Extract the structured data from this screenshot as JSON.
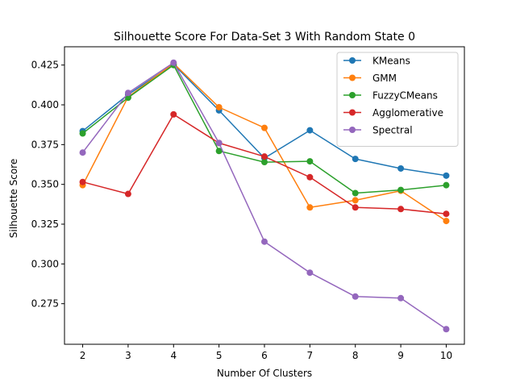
{
  "chart_data": {
    "type": "line",
    "title": "Silhouette Score For Data-Set 3 With Random State 0",
    "xlabel": "Number Of Clusters",
    "ylabel": "Silhouette Score",
    "x": [
      2,
      3,
      4,
      5,
      6,
      7,
      8,
      9,
      10
    ],
    "xlim": [
      1.6,
      10.4
    ],
    "ylim": [
      0.2495,
      0.4365
    ],
    "yticks": [
      0.275,
      0.3,
      0.325,
      0.35,
      0.375,
      0.4,
      0.425
    ],
    "ytick_labels": [
      "0.275",
      "0.300",
      "0.325",
      "0.350",
      "0.375",
      "0.400",
      "0.425"
    ],
    "xtick_labels": [
      "2",
      "3",
      "4",
      "5",
      "6",
      "7",
      "8",
      "9",
      "10"
    ],
    "grid": false,
    "legend_position": "top-right",
    "series": [
      {
        "name": "KMeans",
        "color": "#1f77b4",
        "values": [
          0.3835,
          0.4065,
          0.4255,
          0.3965,
          0.3665,
          0.384,
          0.366,
          0.36,
          0.3555
        ]
      },
      {
        "name": "GMM",
        "color": "#ff7f0e",
        "values": [
          0.3495,
          0.405,
          0.426,
          0.3985,
          0.3855,
          0.3355,
          0.34,
          0.346,
          0.327
        ]
      },
      {
        "name": "FuzzyCMeans",
        "color": "#2ca02c",
        "values": [
          0.382,
          0.4045,
          0.425,
          0.371,
          0.364,
          0.3645,
          0.3445,
          0.3465,
          0.3495
        ]
      },
      {
        "name": "Agglomerative",
        "color": "#d62728",
        "values": [
          0.3515,
          0.344,
          0.394,
          0.376,
          0.3675,
          0.3545,
          0.3355,
          0.3345,
          0.3315
        ]
      },
      {
        "name": "Spectral",
        "color": "#9467bd",
        "values": [
          0.37,
          0.4075,
          0.4265,
          0.376,
          0.314,
          0.2945,
          0.2795,
          0.2785,
          0.259
        ]
      }
    ]
  }
}
